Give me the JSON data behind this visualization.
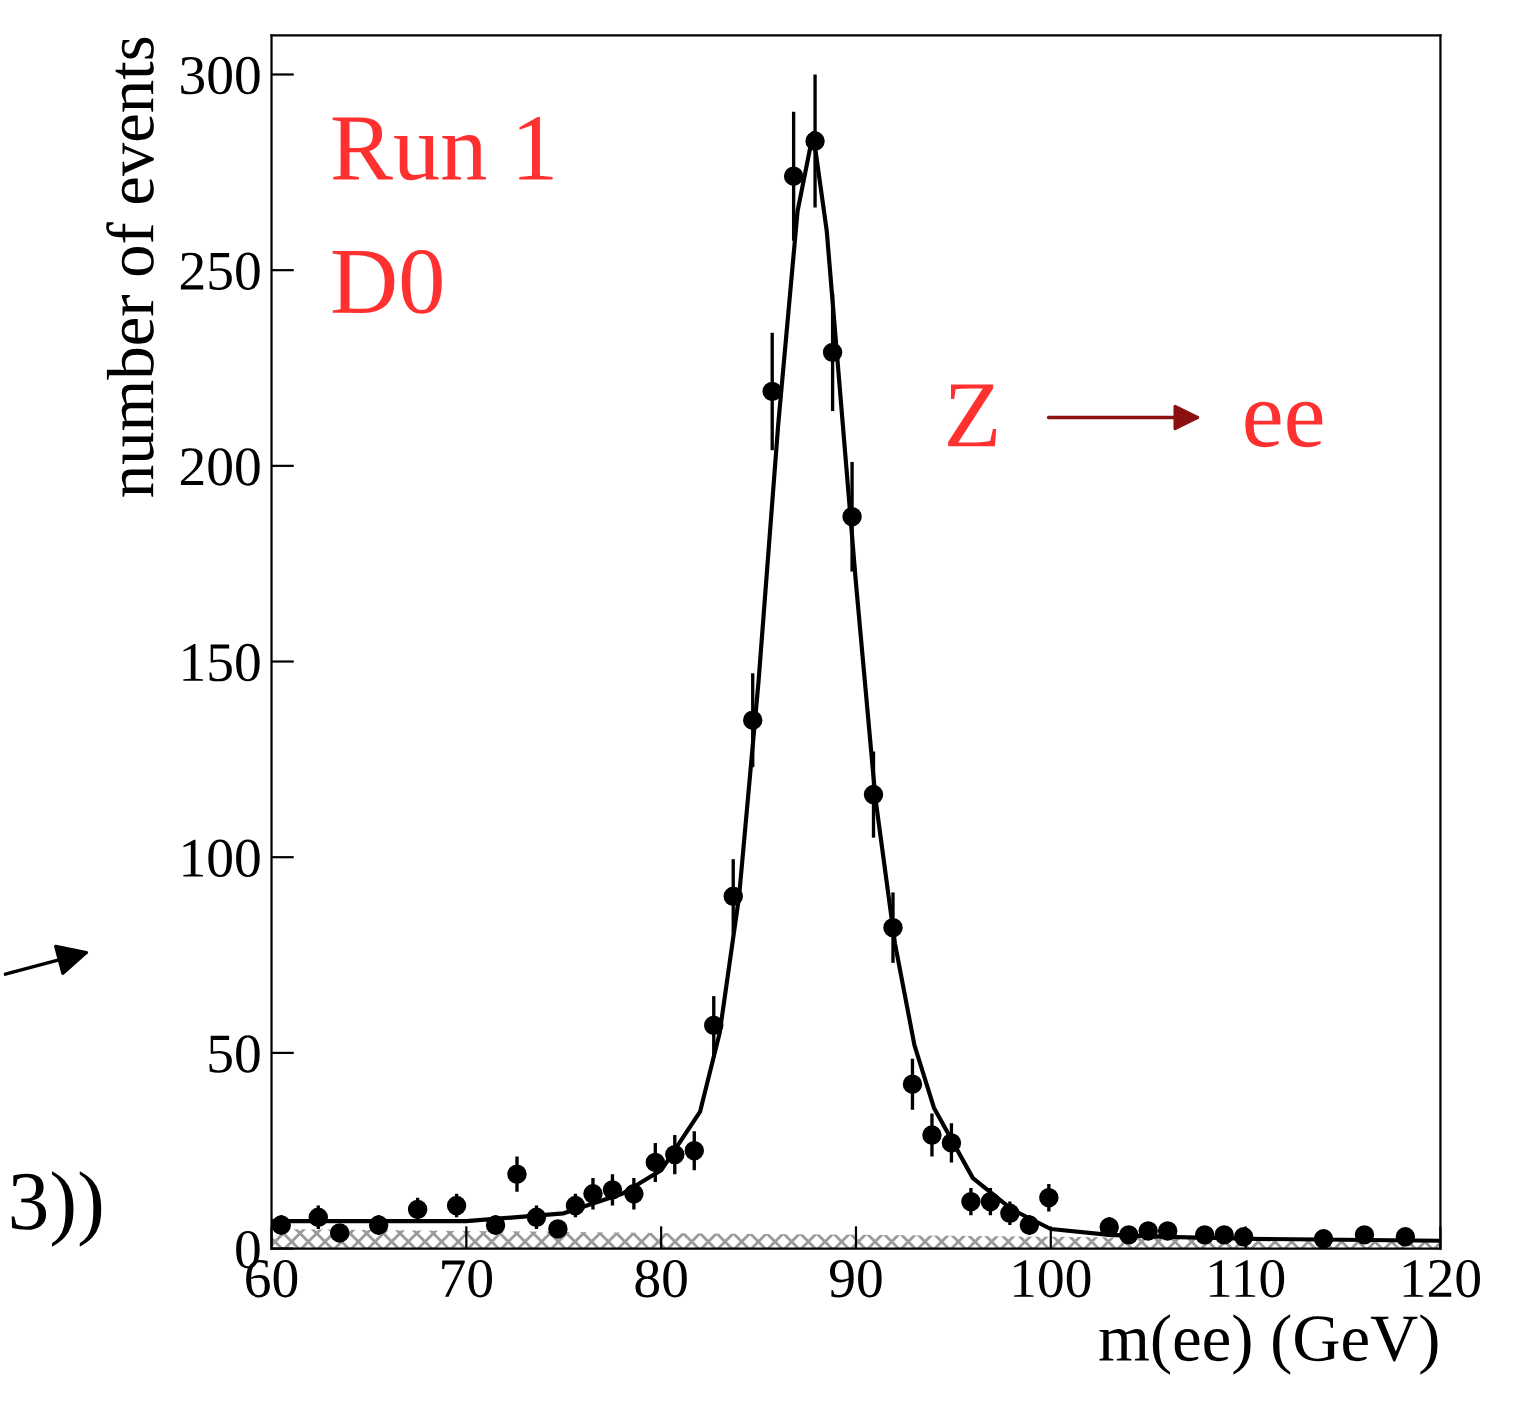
{
  "chart_data": {
    "type": "scatter",
    "xlabel": "m(ee) (GeV)",
    "ylabel": "number of events",
    "xlim": [
      60,
      120
    ],
    "ylim": [
      0,
      310
    ],
    "xticks": [
      60,
      70,
      80,
      90,
      100,
      110,
      120
    ],
    "yticks": [
      0,
      50,
      100,
      150,
      200,
      250,
      300
    ],
    "grid": false,
    "legend": false,
    "series": [
      {
        "type": "area",
        "color": "#9a9a9a",
        "x": [
          60,
          70,
          80,
          90,
          100,
          110,
          120
        ],
        "values": [
          5,
          4.5,
          4,
          3.5,
          3,
          2.5,
          2
        ]
      },
      {
        "type": "line",
        "color": "#000000",
        "x": [
          60,
          65,
          70,
          75,
          78,
          80,
          82,
          83,
          84,
          85,
          86,
          87,
          87.8,
          88.5,
          89,
          90,
          91,
          92,
          93,
          94,
          96,
          98,
          100,
          103,
          106,
          110,
          120
        ],
        "values": [
          7,
          7,
          7,
          9,
          14,
          20,
          35,
          55,
          90,
          145,
          210,
          265,
          285,
          260,
          230,
          170,
          115,
          78,
          52,
          36,
          18,
          10,
          5,
          3.5,
          3,
          2.5,
          2
        ]
      },
      {
        "color": "#000000",
        "marker": "circle",
        "x": [
          60.5,
          62.4,
          63.5,
          65.5,
          67.5,
          69.5,
          71.5,
          72.6,
          73.6,
          74.7,
          75.6,
          76.5,
          77.5,
          78.6,
          79.7,
          80.7,
          81.7,
          82.7,
          83.7,
          84.7,
          85.7,
          86.8,
          87.9,
          88.8,
          89.8,
          90.9,
          91.9,
          92.9,
          93.9,
          94.9,
          95.9,
          96.9,
          97.9,
          98.9,
          99.9,
          103,
          104,
          105,
          106,
          107.9,
          108.9,
          109.9,
          114,
          116.1,
          118.2
        ],
        "values": [
          6,
          8,
          4,
          6,
          10,
          11,
          6,
          19,
          8,
          5,
          11,
          14,
          15,
          14,
          22,
          24,
          25,
          57,
          90,
          135,
          219,
          274,
          283,
          229,
          187,
          116,
          82,
          42,
          29,
          27,
          12,
          12,
          9,
          6,
          13,
          5.5,
          3.5,
          4.5,
          4.5,
          3.5,
          3.5,
          3,
          2.5,
          3.5,
          3
        ],
        "errors": [
          2.5,
          3,
          2,
          2.5,
          3,
          3,
          2.5,
          4.5,
          3,
          2,
          3,
          4,
          4,
          4,
          5,
          5,
          5,
          7.5,
          9.5,
          12,
          15,
          16.5,
          17,
          15,
          14,
          11,
          9,
          6.5,
          5.5,
          5,
          3.5,
          3.5,
          3,
          2.5,
          3.5,
          2.5,
          2,
          2,
          2,
          2,
          2,
          2,
          1.5,
          2,
          2
        ]
      }
    ],
    "annotations": [
      "Run 1",
      "D0",
      "Z",
      "ee",
      "3))"
    ]
  }
}
